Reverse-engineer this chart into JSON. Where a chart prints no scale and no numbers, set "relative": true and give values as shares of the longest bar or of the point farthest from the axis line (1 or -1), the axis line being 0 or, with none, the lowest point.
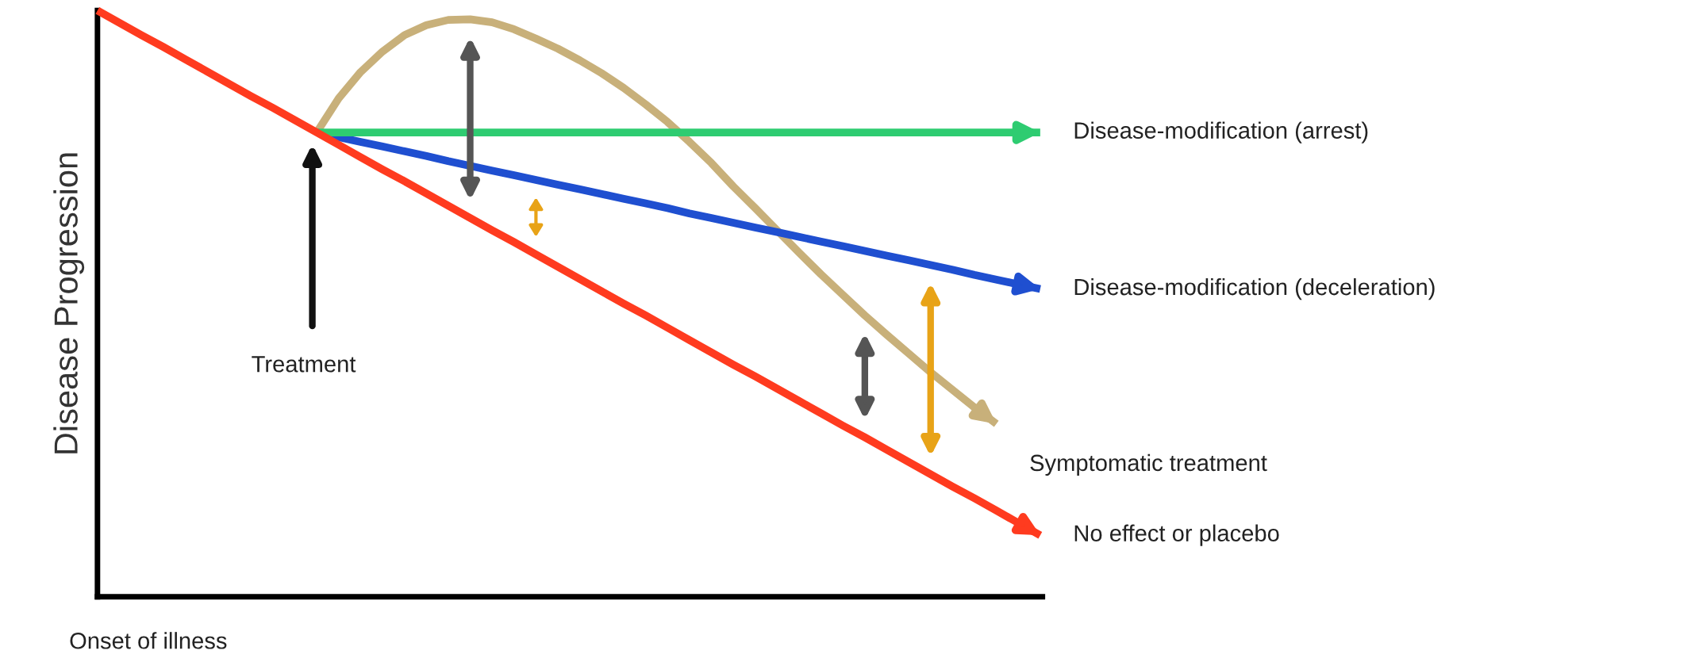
{
  "chart_data": {
    "type": "line",
    "relative": true,
    "xlabel": "Onset of illness",
    "ylabel": "Disease Progression",
    "annotations": [
      "Treatment"
    ],
    "legend": "right",
    "marker": "none",
    "line_style": "solid",
    "categories": [
      null,
      null,
      null,
      null,
      null,
      null,
      null,
      null,
      null,
      null,
      null,
      null,
      null,
      null,
      null,
      null,
      null,
      null,
      null,
      null,
      null,
      null,
      null,
      null,
      null,
      null,
      null,
      null,
      null,
      null,
      null,
      null,
      null,
      null,
      null,
      null,
      null,
      null,
      null,
      null,
      null,
      null,
      null,
      null
    ],
    "series": [
      {
        "name": "No effect or placebo",
        "color": "#ff3b1f",
        "values": [
          1.0,
          0.979,
          0.958,
          0.938,
          0.917,
          0.896,
          0.875,
          0.854,
          0.834,
          0.813,
          0.792,
          0.771,
          0.75,
          0.729,
          0.709,
          0.688,
          0.667,
          0.646,
          0.625,
          0.605,
          0.584,
          0.563,
          0.542,
          0.521,
          0.5,
          0.48,
          0.459,
          0.438,
          0.417,
          0.396,
          0.376,
          0.355,
          0.334,
          0.313,
          0.292,
          0.272,
          0.251,
          0.23,
          0.209,
          0.188,
          0.168,
          0.147,
          0.126,
          0.105
        ]
      },
      {
        "name": "Disease-modification (arrest)",
        "color": "#2ecc71",
        "values": [
          null,
          null,
          null,
          null,
          null,
          null,
          null,
          null,
          null,
          null,
          0.792,
          0.792,
          0.792,
          0.792,
          0.792,
          0.792,
          0.792,
          0.792,
          0.792,
          0.792,
          0.792,
          0.792,
          0.792,
          0.792,
          0.792,
          0.792,
          0.792,
          0.792,
          0.792,
          0.792,
          0.792,
          0.792,
          0.792,
          0.792,
          0.792,
          0.792,
          0.792,
          0.792,
          0.792,
          0.792,
          0.792,
          0.792,
          0.792,
          0.792
        ]
      },
      {
        "name": "Disease-modification (deceleration)",
        "color": "#1f4fd0",
        "values": [
          null,
          null,
          null,
          null,
          null,
          null,
          null,
          null,
          null,
          null,
          0.792,
          0.784,
          0.776,
          0.768,
          0.76,
          0.752,
          0.743,
          0.735,
          0.727,
          0.719,
          0.711,
          0.703,
          0.695,
          0.687,
          0.679,
          0.671,
          0.663,
          0.654,
          0.646,
          0.638,
          0.63,
          0.622,
          0.614,
          0.606,
          0.598,
          0.59,
          0.582,
          0.574,
          0.566,
          0.558,
          0.549,
          0.541,
          0.533,
          0.525
        ]
      },
      {
        "name": "Symptomatic treatment",
        "color": "#c8b07a",
        "values": [
          null,
          null,
          null,
          null,
          null,
          null,
          null,
          null,
          null,
          null,
          0.792,
          0.85,
          0.895,
          0.93,
          0.958,
          0.975,
          0.984,
          0.985,
          0.98,
          0.968,
          0.952,
          0.935,
          0.915,
          0.893,
          0.868,
          0.84,
          0.81,
          0.776,
          0.74,
          0.7,
          0.663,
          0.625,
          0.587,
          0.55,
          0.515,
          0.48,
          0.447,
          0.415,
          0.383,
          0.353,
          0.323,
          0.295,
          null,
          null
        ]
      }
    ]
  }
}
